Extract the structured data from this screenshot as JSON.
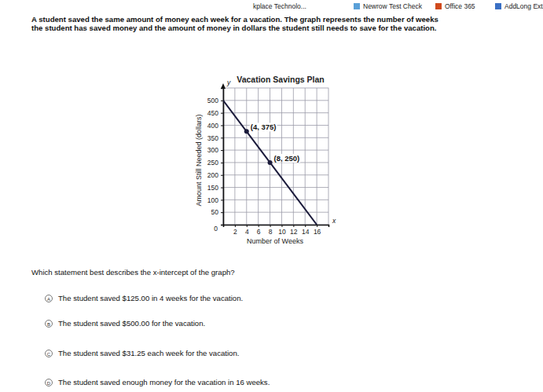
{
  "browser_bar": [
    "kplace Technolo...",
    "Newrow Test Check",
    "Office 365",
    "AddLong Extra"
  ],
  "question_text": [
    "A student saved the same amount of money each week for a vacation. The graph represents the number of weeks",
    "the student has saved money and the amount of money in dollars the student still needs to save for the vacation."
  ],
  "chart_data": {
    "type": "line",
    "title": "Vacation Savings Plan",
    "x_label": "Number of Weeks",
    "y_label": "Amount Still Needed (dollars)",
    "x_axis_letter": "x",
    "y_axis_letter": "y",
    "x": [
      0,
      4,
      8,
      16
    ],
    "series": [
      {
        "color": "#1b1b3b",
        "values": [
          500,
          375,
          250,
          0
        ]
      }
    ],
    "xlim": [
      0,
      18
    ],
    "ylim": [
      0,
      550
    ],
    "xticks": [
      0,
      2,
      4,
      6,
      8,
      10,
      12,
      14,
      16
    ],
    "yticks": [
      50,
      100,
      150,
      200,
      250,
      300,
      350,
      400,
      450,
      500
    ],
    "grid": true,
    "annotations": [
      {
        "x": 4,
        "y": 375,
        "text": "(4, 375)"
      },
      {
        "x": 8,
        "y": 250,
        "text": "(8, 250)"
      }
    ]
  },
  "prompt": "Which statement best describes the x-intercept of the graph?",
  "choices": [
    {
      "letter": "A",
      "text": "The student saved $125.00 in 4 weeks for the vacation."
    },
    {
      "letter": "B",
      "text": "The student saved $500.00 for the vacation."
    },
    {
      "letter": "C",
      "text": "The student saved $31.25 each week for the vacation."
    },
    {
      "letter": "D",
      "text": "The student saved enough money for the vacation in 16 weeks."
    }
  ]
}
